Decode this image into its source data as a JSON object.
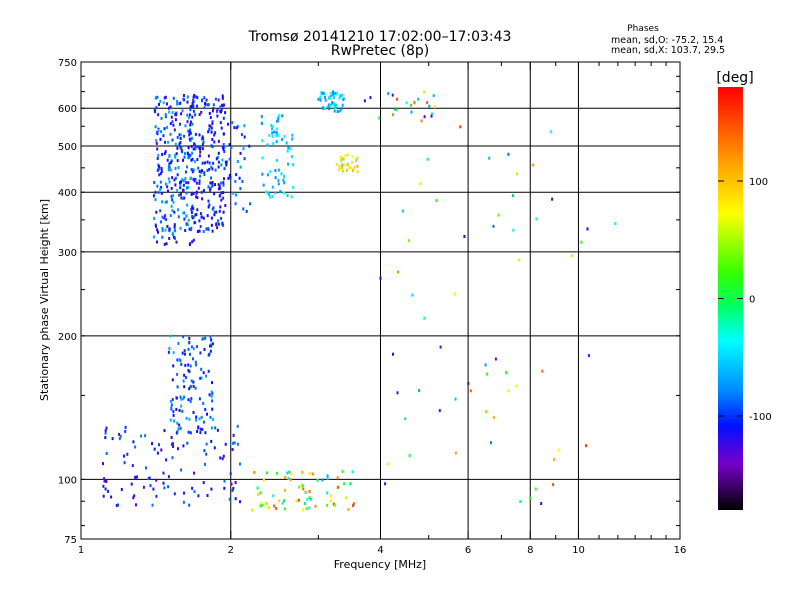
{
  "chart_data": {
    "type": "scatter",
    "title": "Tromsø 20141210 17:02:00–17:03:43",
    "subtitle": "RwPretec (8p)",
    "phases_text": {
      "title": "Phases",
      "line1": "mean, sd,O: -75.2, 15.4",
      "line2": "mean, sd,X: 103.7, 29.5"
    },
    "xlabel": "Frequency [MHz]",
    "ylabel": "Stationary phase Virtual Height [km]",
    "xscale": "log",
    "yscale": "log",
    "xlim": [
      1,
      16
    ],
    "ylim": [
      75,
      750
    ],
    "x_major_ticks": [
      1,
      2,
      4,
      6,
      8,
      10,
      16
    ],
    "x_gridlines": [
      2,
      4,
      6,
      8,
      10
    ],
    "y_major_ticks": [
      75,
      100,
      200,
      300,
      400,
      500,
      600,
      750
    ],
    "y_gridlines": [
      100,
      200,
      300,
      400,
      500,
      600
    ],
    "grid": true,
    "colorbar": {
      "label": "[deg]",
      "range": [
        -180,
        180
      ],
      "ticks": [
        100,
        0,
        -100
      ]
    },
    "point_clusters": [
      {
        "x_range": [
          1.4,
          1.7
        ],
        "y_range": [
          310,
          640
        ],
        "phase_range": [
          -130,
          -60
        ],
        "count": 260
      },
      {
        "x_range": [
          1.65,
          1.95
        ],
        "y_range": [
          330,
          640
        ],
        "phase_range": [
          -130,
          -85
        ],
        "count": 200
      },
      {
        "x_range": [
          1.9,
          2.2
        ],
        "y_range": [
          360,
          560
        ],
        "phase_range": [
          -120,
          -60
        ],
        "count": 40
      },
      {
        "x_range": [
          2.3,
          2.7
        ],
        "y_range": [
          390,
          580
        ],
        "phase_range": [
          -80,
          -30
        ],
        "count": 60
      },
      {
        "x_range": [
          3.0,
          3.4
        ],
        "y_range": [
          590,
          650
        ],
        "phase_range": [
          -80,
          -30
        ],
        "count": 50
      },
      {
        "x_range": [
          3.25,
          3.6
        ],
        "y_range": [
          440,
          480
        ],
        "phase_range": [
          40,
          110
        ],
        "count": 25
      },
      {
        "x_range": [
          1.5,
          1.85
        ],
        "y_range": [
          125,
          200
        ],
        "phase_range": [
          -120,
          -60
        ],
        "count": 120
      },
      {
        "x_range": [
          1.1,
          2.1
        ],
        "y_range": [
          88,
          130
        ],
        "phase_range": [
          -135,
          -80
        ],
        "count": 110
      },
      {
        "x_range": [
          2.2,
          3.6
        ],
        "y_range": [
          86,
          104
        ],
        "phase_range": [
          -80,
          160
        ],
        "count": 70
      },
      {
        "x_range": [
          3.7,
          5.2
        ],
        "y_range": [
          560,
          650
        ],
        "phase_range": [
          -150,
          160
        ],
        "count": 24
      },
      {
        "x_range": [
          4.0,
          12.0
        ],
        "y_range": [
          85,
          560
        ],
        "phase_range": [
          -150,
          160
        ],
        "count": 60
      }
    ]
  }
}
